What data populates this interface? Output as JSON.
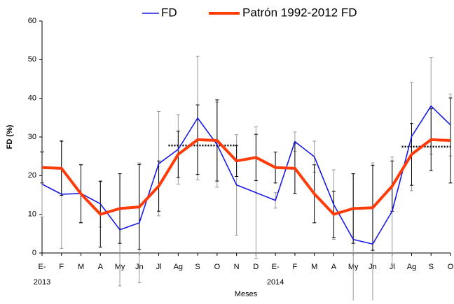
{
  "chart_data": {
    "type": "line",
    "categories": [
      "E-",
      "F",
      "M",
      "A",
      "My",
      "Jn",
      "Jl",
      "Ag",
      "S",
      "O",
      "N",
      "D",
      "E-",
      "F",
      "M",
      "A",
      "My",
      "Jn",
      "Jl",
      "Ag",
      "S",
      "O"
    ],
    "years": [
      "2013",
      null,
      null,
      null,
      null,
      null,
      null,
      null,
      null,
      null,
      null,
      null,
      "2014",
      null,
      null,
      null,
      null,
      null,
      null,
      null,
      null,
      null
    ],
    "x_label": "Meses",
    "y_label": "FD (%)",
    "ylim": [
      0,
      60
    ],
    "yticks": [
      0,
      10,
      20,
      30,
      40,
      50,
      60
    ],
    "series": [
      {
        "name": "FD",
        "color": "#1a1ae6",
        "error_color": "#999999",
        "width": 1.6,
        "values": [
          17.8,
          15.2,
          15.4,
          12.7,
          6.0,
          7.8,
          23.1,
          26.8,
          34.9,
          28.0,
          17.6,
          15.6,
          13.6,
          28.8,
          24.9,
          12.5,
          3.5,
          2.3,
          10.8,
          30.1,
          38.0,
          33.1
        ],
        "errors": [
          8.5,
          14,
          7.5,
          6,
          14.5,
          15.5,
          13.5,
          9,
          16,
          11,
          13,
          17,
          2,
          2.5,
          4,
          9,
          17,
          21,
          14,
          14,
          12.5,
          8
        ]
      },
      {
        "name": "Patrón 1992-2012 FD",
        "color": "#ff3b0a",
        "error_color": "#000000",
        "width": 4,
        "values": [
          22.1,
          21.9,
          15.3,
          10.0,
          11.5,
          11.9,
          17.3,
          25.5,
          29.3,
          29.1,
          23.8,
          24.7,
          22.1,
          21.9,
          15.3,
          10.0,
          11.5,
          11.7,
          17.3,
          25.5,
          29.3,
          29.1
        ],
        "errors": [
          4,
          7,
          7.5,
          8.5,
          9,
          11,
          6.5,
          6,
          9,
          10.5,
          4,
          6,
          4,
          6.5,
          7.5,
          6,
          9,
          11,
          6.5,
          8,
          8,
          11
        ]
      }
    ],
    "reference_lines": [
      {
        "value": 27.8,
        "start": 6.5,
        "end": 10
      },
      {
        "value": 27.5,
        "start": 18.5,
        "end": 21
      }
    ]
  }
}
